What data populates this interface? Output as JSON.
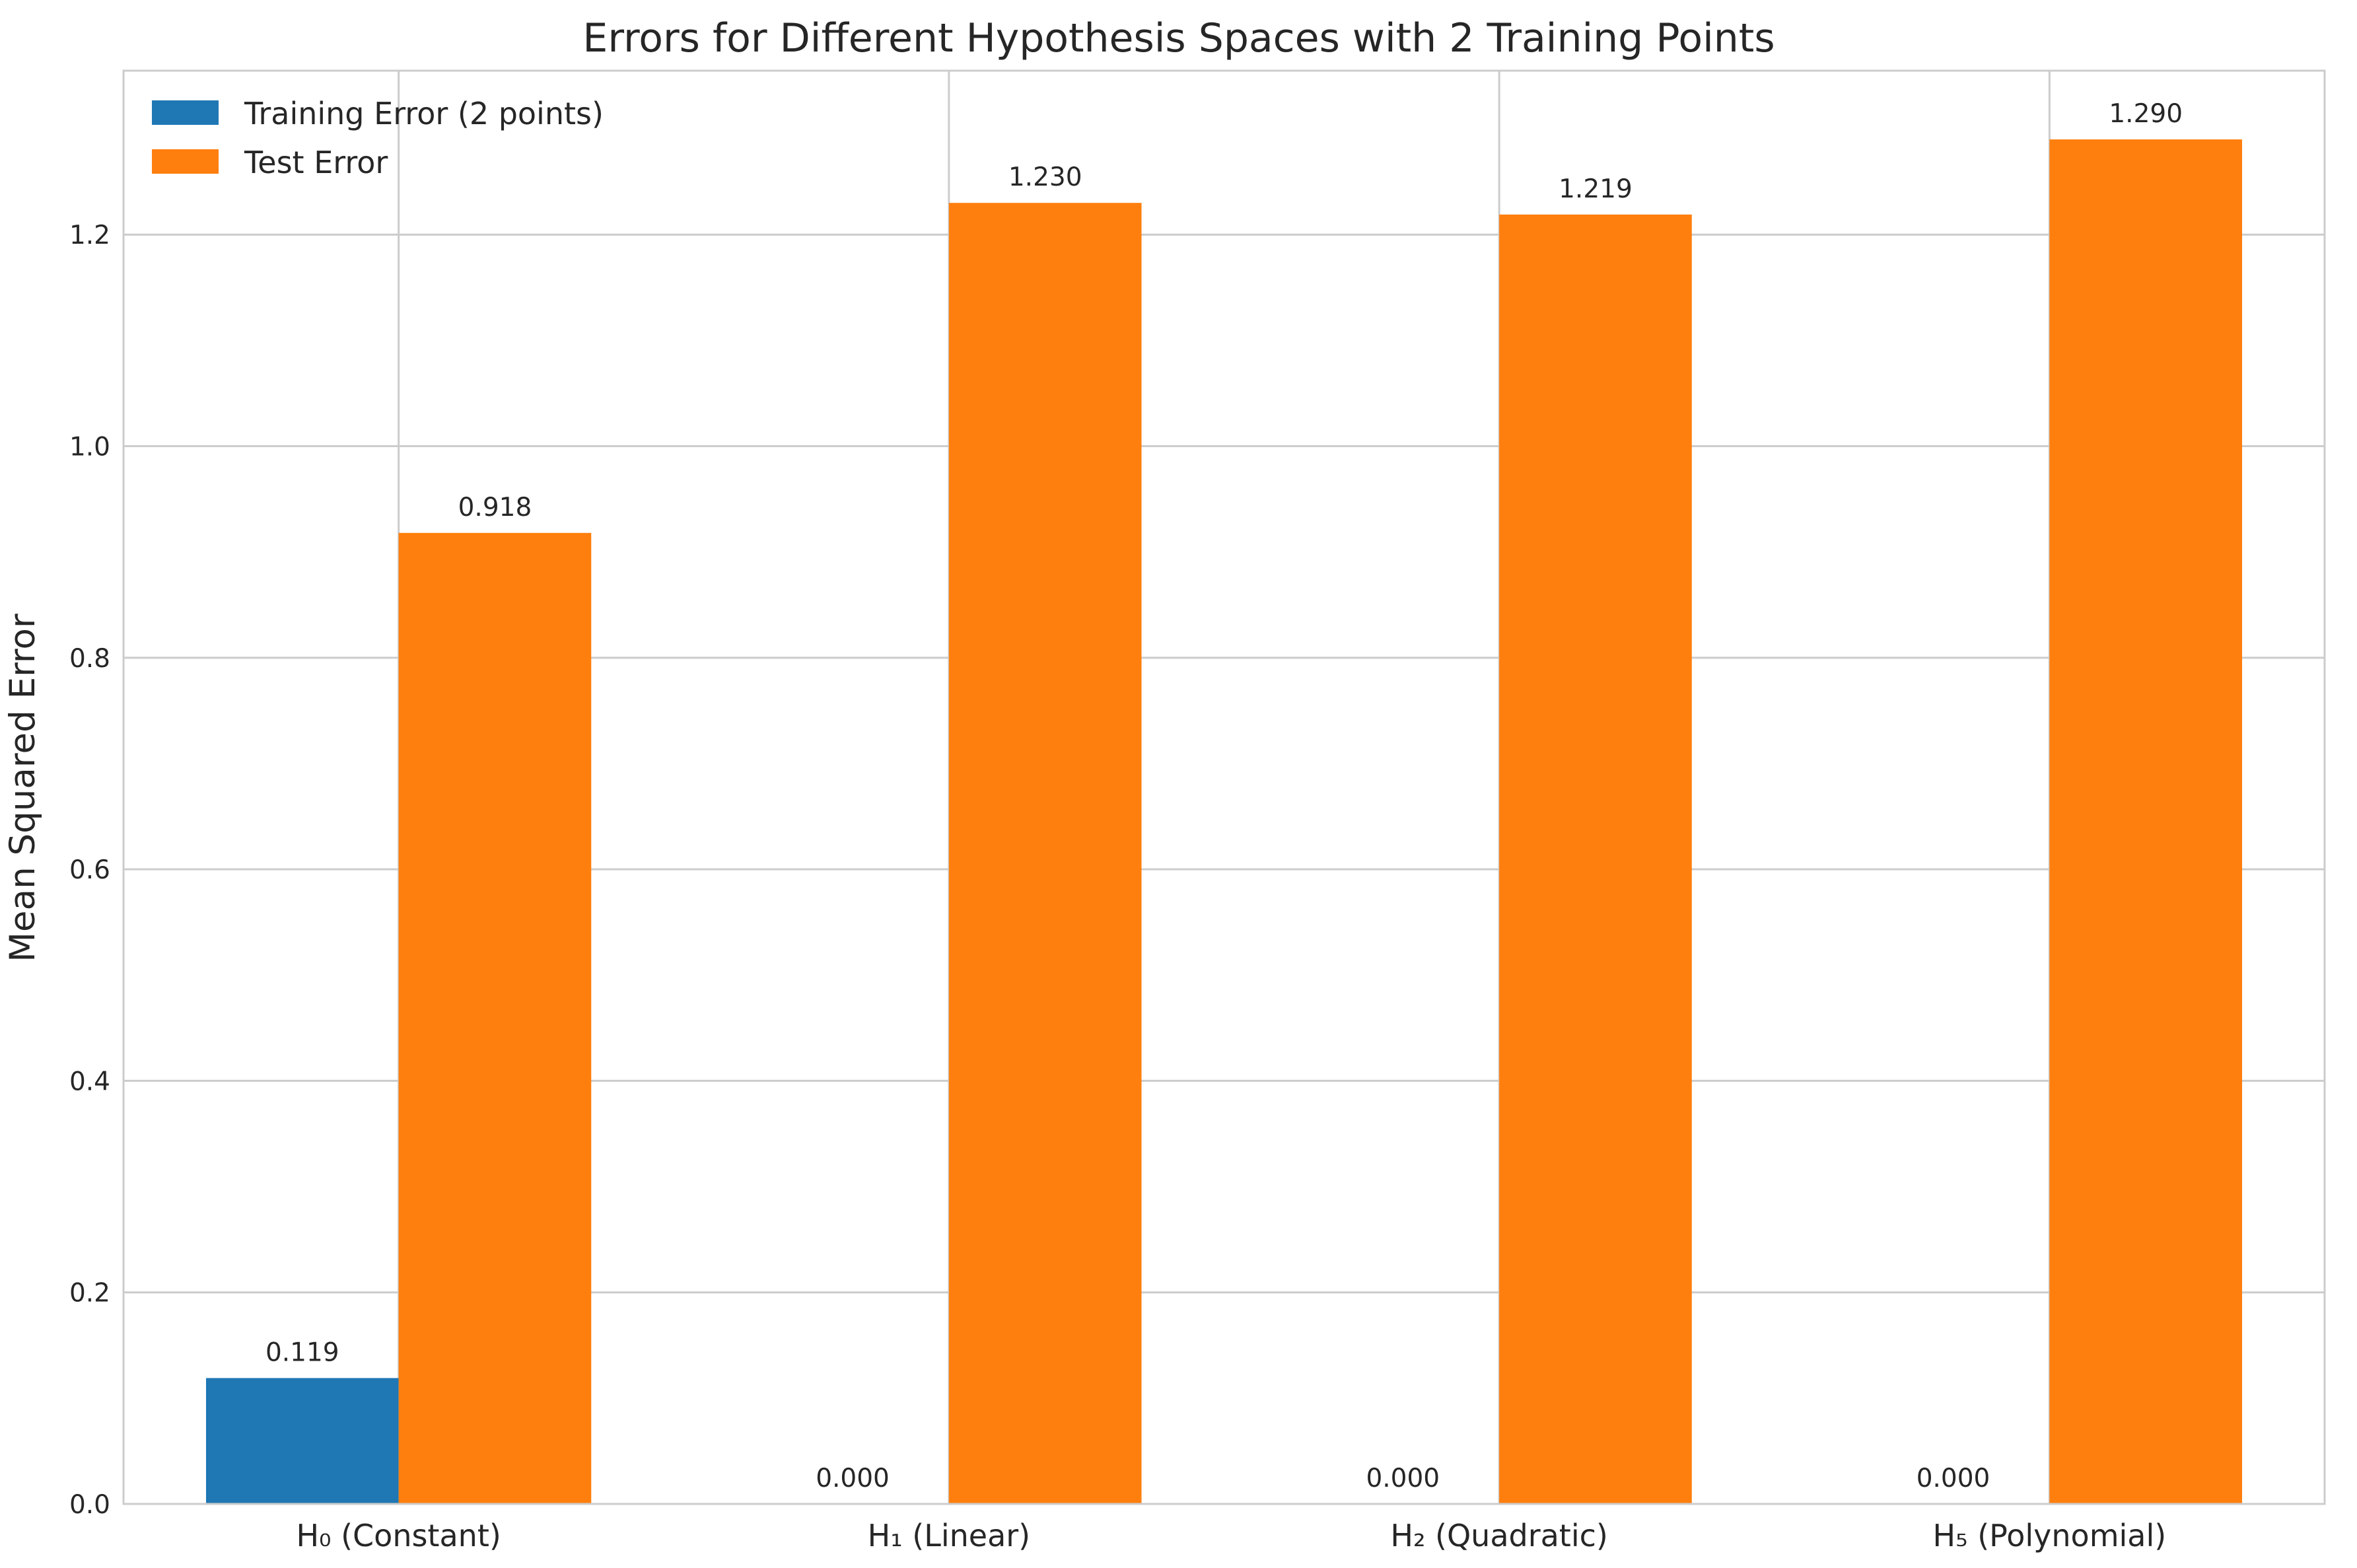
{
  "chart_data": {
    "type": "bar",
    "title": "Errors for Different Hypothesis Spaces with 2 Training Points",
    "xlabel": "",
    "ylabel": "Mean Squared Error",
    "categories": [
      "H₀ (Constant)",
      "H₁ (Linear)",
      "H₂ (Quadratic)",
      "H₅ (Polynomial)"
    ],
    "series": [
      {
        "name": "Training Error (2 points)",
        "color": "#1f77b4",
        "values": [
          0.119,
          0.0,
          0.0,
          0.0
        ],
        "labels": [
          "0.119",
          "0.000",
          "0.000",
          "0.000"
        ]
      },
      {
        "name": "Test Error",
        "color": "#ff7f0e",
        "values": [
          0.918,
          1.23,
          1.219,
          1.29
        ],
        "labels": [
          "0.918",
          "1.230",
          "1.219",
          "1.290"
        ]
      }
    ],
    "ylim": [
      0,
      1.355
    ],
    "yticks": [
      0.0,
      0.2,
      0.4,
      0.6,
      0.8,
      1.0,
      1.2
    ],
    "ytick_labels": [
      "0.0",
      "0.2",
      "0.4",
      "0.6",
      "0.8",
      "1.0",
      "1.2"
    ],
    "grid": true,
    "legend_position": "top-left"
  }
}
